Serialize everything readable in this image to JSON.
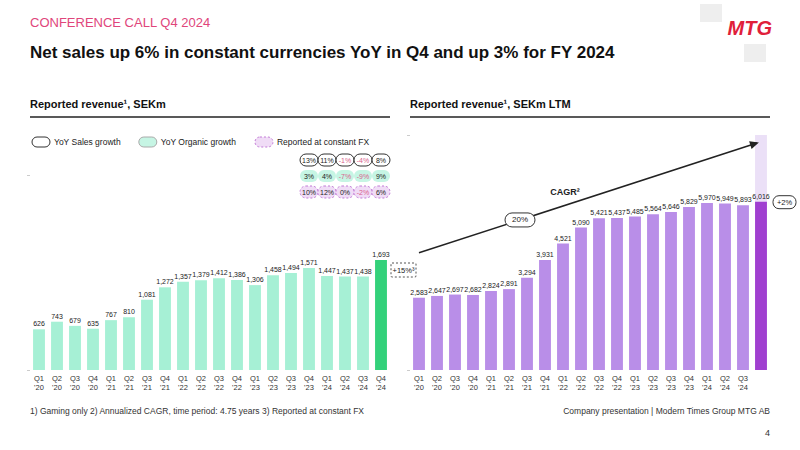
{
  "header": {
    "subtitle": "CONFERENCE CALL Q4 2024",
    "title": "Net sales up 6% in constant currencies YoY in Q4 and up 3% for FY 2024",
    "logo": "MTG"
  },
  "chart_data": [
    {
      "type": "bar",
      "title": "Reported revenue¹, SEKm",
      "categories": [
        "Q1'20",
        "Q2'20",
        "Q3'20",
        "Q4'20",
        "Q1'21",
        "Q2'21",
        "Q3'21",
        "Q4'21",
        "Q1'22",
        "Q2'22",
        "Q3'22",
        "Q4'22",
        "Q1'23",
        "Q2'23",
        "Q3'23",
        "Q4'23",
        "Q1'24",
        "Q2'24",
        "Q3'24",
        "Q4'24"
      ],
      "values": [
        626,
        743,
        679,
        635,
        767,
        810,
        1081,
        1272,
        1357,
        1379,
        1412,
        1386,
        1306,
        1458,
        1494,
        1571,
        1447,
        1437,
        1438,
        1693
      ],
      "value_labels": [
        "626",
        "743",
        "679",
        "635",
        "767",
        "810",
        "1,081",
        "1,272",
        "1,357",
        "1,379",
        "1,412",
        "1,386",
        "1,306",
        "1,458",
        "1,494",
        "1,571",
        "1,447",
        "1,437",
        "1,438",
        "1,693"
      ],
      "colors": [
        "#a6f0d5",
        "#a6f0d5",
        "#a6f0d5",
        "#a6f0d5",
        "#a6f0d5",
        "#a6f0d5",
        "#a6f0d5",
        "#a6f0d5",
        "#a6f0d5",
        "#a6f0d5",
        "#a6f0d5",
        "#a6f0d5",
        "#a6f0d5",
        "#a6f0d5",
        "#a6f0d5",
        "#a6f0d5",
        "#a6f0d5",
        "#a6f0d5",
        "#a6f0d5",
        "#33d17a"
      ],
      "ylim": [
        0,
        3000
      ],
      "yticks": [
        0,
        3000
      ],
      "grid": false,
      "data_labels": true,
      "tick_labels": "x",
      "growth_table": {
        "categories": [
          "Q4'23",
          "Q1'24",
          "Q2'24",
          "Q3'24",
          "Q4'24"
        ],
        "rows": [
          {
            "name": "YoY Sales growth",
            "values": [
              13,
              11,
              -1,
              -4,
              8
            ],
            "value_labels": [
              "13%",
              "11%",
              "-1%",
              "-4%",
              "8%"
            ]
          },
          {
            "name": "YoY Organic growth",
            "values": [
              3,
              4,
              -7,
              -9,
              9
            ],
            "value_labels": [
              "3%",
              "4%",
              "-7%",
              "-9%",
              "9%"
            ]
          },
          {
            "name": "Reported at constant FX",
            "values": [
              10,
              12,
              0,
              -2,
              6
            ],
            "value_labels": [
              "10%",
              "12%",
              "0%",
              "-2%",
              "6%"
            ]
          }
        ]
      },
      "change": {
        "value": 15,
        "label": "+15%³"
      }
    },
    {
      "type": "bar",
      "title": "Reported revenue¹, SEKm LTM",
      "categories": [
        "Q1'20",
        "Q2'20",
        "Q3'20",
        "Q4'20",
        "Q1'21",
        "Q2'21",
        "Q3'21",
        "Q4'21",
        "Q1'22",
        "Q2'22",
        "Q3'22",
        "Q4'22",
        "Q1'23",
        "Q2'23",
        "Q3'23",
        "Q4'23",
        "Q1'24",
        "Q2'24",
        "Q3'24",
        null
      ],
      "values": [
        2583,
        2647,
        2697,
        2682,
        2824,
        2891,
        3294,
        3931,
        4521,
        5090,
        5421,
        5437,
        5485,
        5564,
        5646,
        5829,
        5970,
        5949,
        5893,
        6016
      ],
      "value_labels": [
        "2,583",
        "2,647",
        "2,697",
        "2,682",
        "2,824",
        "2,891",
        "3,294",
        "3,931",
        "4,521",
        "5,090",
        "5,421",
        "5,437",
        "5,485",
        "5,564",
        "5,646",
        "5,829",
        "5,970",
        "5,949",
        "5,893",
        "6,016"
      ],
      "colors": [
        "#b98ee8",
        "#b98ee8",
        "#b98ee8",
        "#b98ee8",
        "#b98ee8",
        "#b98ee8",
        "#b98ee8",
        "#b98ee8",
        "#b98ee8",
        "#b98ee8",
        "#b98ee8",
        "#b98ee8",
        "#b98ee8",
        "#b98ee8",
        "#b98ee8",
        "#b98ee8",
        "#b98ee8",
        "#b98ee8",
        "#b98ee8",
        "#a03fd0"
      ],
      "ylim": [
        0,
        8400
      ],
      "yticks": [
        0,
        8400
      ],
      "grid": false,
      "data_labels": true,
      "tick_labels": "x",
      "cagr": {
        "title": "CAGR²",
        "value": 20,
        "label": "20%"
      },
      "change": {
        "value": 2,
        "label": "+2%"
      }
    }
  ],
  "footer": {
    "note": "1) Gaming only 2) Annualized CAGR, time period: 4.75 years 3) Reported at constant FX",
    "source": "Company presentation | Modern Times Group MTG AB",
    "page": "4"
  }
}
